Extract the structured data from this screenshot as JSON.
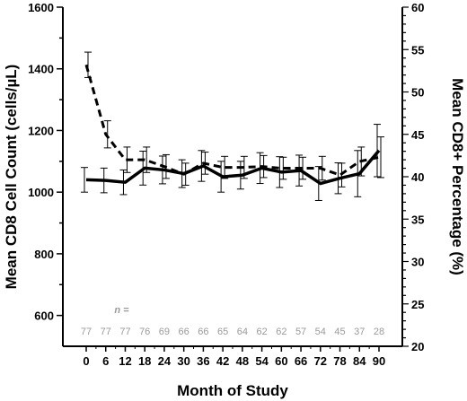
{
  "chart_data": {
    "type": "line",
    "xlabel": "Month of Study",
    "ylabel_left": "Mean CD8 Cell Count (cells/µL)",
    "ylabel_right": "Mean CD8+ Percentage (%)",
    "x": [
      0,
      6,
      12,
      18,
      24,
      30,
      36,
      42,
      48,
      54,
      60,
      66,
      72,
      78,
      84,
      90
    ],
    "x_ticks": [
      "0",
      "6",
      "12",
      "18",
      "24",
      "30",
      "36",
      "42",
      "48",
      "54",
      "60",
      "66",
      "72",
      "78",
      "84",
      "90"
    ],
    "y_left_ticks": [
      "600",
      "800",
      "1000",
      "1200",
      "1400",
      "1600"
    ],
    "y_right_ticks": [
      "20",
      "25",
      "30",
      "35",
      "40",
      "45",
      "50",
      "55",
      "60"
    ],
    "ylim_left": [
      500,
      1600
    ],
    "ylim_right": [
      20,
      60
    ],
    "series": [
      {
        "axis": "left",
        "style": "solid",
        "values": [
          1040,
          1038,
          1032,
          1078,
          1072,
          1060,
          1085,
          1050,
          1055,
          1078,
          1065,
          1070,
          1028,
          1045,
          1060,
          1135
        ],
        "err": [
          40,
          40,
          40,
          55,
          45,
          45,
          50,
          50,
          45,
          50,
          50,
          50,
          55,
          50,
          75,
          85
        ]
      },
      {
        "axis": "right",
        "style": "dashed",
        "values": [
          53.2,
          45.0,
          42.0,
          42.0,
          41.2,
          40.3,
          41.6,
          41.1,
          41.1,
          41.2,
          41.0,
          41.0,
          41.0,
          40.2,
          41.8,
          42.3
        ],
        "err": [
          1.5,
          1.6,
          1.5,
          1.5,
          1.4,
          1.3,
          1.3,
          1.3,
          1.3,
          1.3,
          1.3,
          1.3,
          1.4,
          1.4,
          1.7,
          2.4
        ]
      }
    ],
    "n_title": "n =",
    "n_values": [
      "77",
      "77",
      "77",
      "76",
      "69",
      "66",
      "66",
      "65",
      "64",
      "62",
      "62",
      "57",
      "54",
      "45",
      "37",
      "28"
    ],
    "grid": false
  }
}
